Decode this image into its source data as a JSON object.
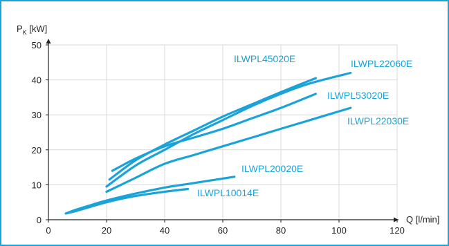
{
  "chart_data": {
    "type": "line",
    "xlabel": "Q [l/min]",
    "ylabel_main": "P",
    "ylabel_sub": "K",
    "ylabel_unit": " [kW]",
    "xlim": [
      0,
      120
    ],
    "ylim": [
      0,
      50
    ],
    "x_ticks": [
      0,
      20,
      40,
      60,
      80,
      100,
      120
    ],
    "y_ticks": [
      0,
      10,
      20,
      30,
      40,
      50
    ],
    "grid": true,
    "line_color": "#1aa3d9",
    "frame_color": "#1aa3d9",
    "series": [
      {
        "name": "ILWPL45020E",
        "x": [
          21,
          30,
          40,
          50,
          60,
          70,
          80,
          92
        ],
        "y": [
          11.5,
          17.0,
          21.5,
          25.5,
          29.5,
          33.0,
          36.5,
          40.5
        ]
      },
      {
        "name": "ILWPL22060E",
        "x": [
          20,
          30,
          40,
          50,
          60,
          70,
          80,
          90,
          104
        ],
        "y": [
          9.5,
          15.5,
          20.0,
          24.5,
          28.5,
          32.5,
          36.0,
          39.0,
          42.0
        ]
      },
      {
        "name": "ILWPL53020E",
        "x": [
          22,
          30,
          40,
          50,
          60,
          70,
          80,
          92
        ],
        "y": [
          14.0,
          17.5,
          21.0,
          23.5,
          26.0,
          29.0,
          32.0,
          36.0
        ]
      },
      {
        "name": "ILWPL22030E",
        "x": [
          20,
          30,
          40,
          50,
          60,
          70,
          80,
          90,
          104
        ],
        "y": [
          8.0,
          12.0,
          16.0,
          18.5,
          21.0,
          23.5,
          26.0,
          28.5,
          32.0
        ]
      },
      {
        "name": "ILWPL20020E",
        "x": [
          6,
          10,
          20,
          30,
          40,
          50,
          64
        ],
        "y": [
          1.8,
          3.0,
          5.5,
          7.5,
          9.2,
          10.5,
          12.3
        ]
      },
      {
        "name": "ILWPL10014E",
        "x": [
          6,
          10,
          20,
          30,
          40,
          48
        ],
        "y": [
          1.8,
          2.6,
          5.0,
          6.8,
          8.0,
          8.8
        ]
      }
    ]
  }
}
